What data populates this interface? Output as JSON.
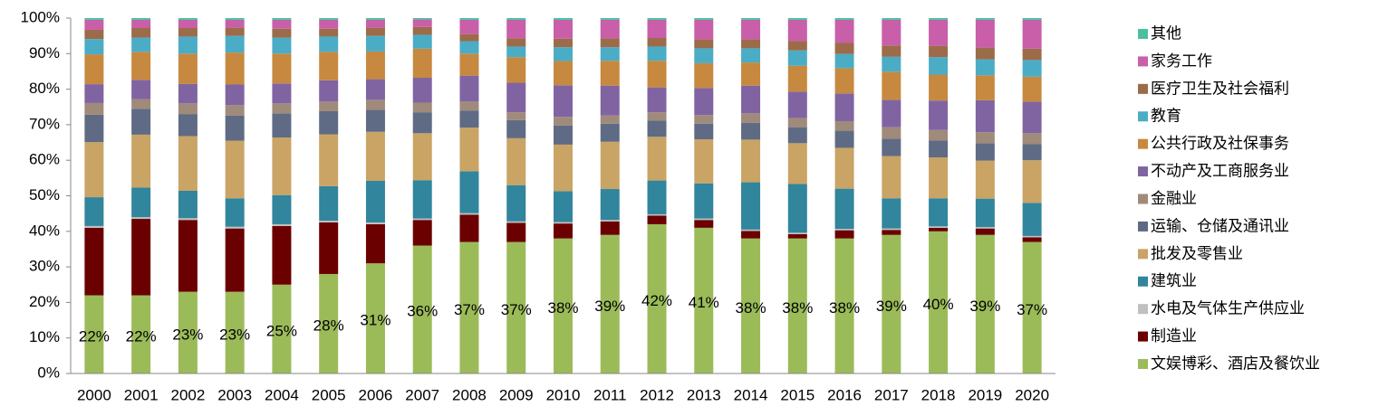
{
  "chart_data": {
    "type": "stacked_bar",
    "categories": [
      "2000",
      "2001",
      "2002",
      "2003",
      "2004",
      "2005",
      "2006",
      "2007",
      "2008",
      "2009",
      "2010",
      "2011",
      "2012",
      "2013",
      "2014",
      "2015",
      "2016",
      "2017",
      "2018",
      "2019",
      "2020"
    ],
    "ylim": [
      0,
      100
    ],
    "yticks": [
      {
        "value": 0,
        "label": "0%"
      },
      {
        "value": 10,
        "label": "10%"
      },
      {
        "value": 20,
        "label": "20%"
      },
      {
        "value": 30,
        "label": "30%"
      },
      {
        "value": 40,
        "label": "40%"
      },
      {
        "value": 50,
        "label": "50%"
      },
      {
        "value": 60,
        "label": "60%"
      },
      {
        "value": 70,
        "label": "70%"
      },
      {
        "value": 80,
        "label": "80%"
      },
      {
        "value": 90,
        "label": "90%"
      },
      {
        "value": 100,
        "label": "100%"
      }
    ],
    "grid": false,
    "legend": "right",
    "series": [
      {
        "name": "文娱博彩、酒店及餐饮业",
        "color": "#9bbb59",
        "values": [
          22,
          22,
          23,
          23,
          25,
          28,
          31,
          36,
          37,
          37,
          38,
          39,
          42,
          41,
          38,
          38,
          38,
          39,
          40,
          39,
          37
        ],
        "value_labels": [
          "22%",
          "22%",
          "23%",
          "23%",
          "25%",
          "28%",
          "31%",
          "36%",
          "37%",
          "37%",
          "38%",
          "39%",
          "42%",
          "41%",
          "38%",
          "38%",
          "38%",
          "39%",
          "40%",
          "39%",
          "37%"
        ]
      },
      {
        "name": "制造业",
        "color": "#6b0000",
        "values": [
          19.0,
          21.5,
          20.2,
          17.8,
          16.5,
          14.5,
          11.0,
          7.2,
          7.7,
          5.4,
          4.2,
          3.8,
          2.4,
          2.2,
          2.1,
          1.2,
          2.3,
          1.4,
          1.0,
          1.8,
          1.3
        ]
      },
      {
        "name": "水电及气体生产供应业",
        "color": "#c0c0c0",
        "values": [
          0.5,
          0.5,
          0.5,
          0.5,
          0.5,
          0.5,
          0.5,
          0.4,
          0.4,
          0.4,
          0.4,
          0.4,
          0.4,
          0.4,
          0.4,
          0.4,
          0.4,
          0.4,
          0.4,
          0.4,
          0.4
        ]
      },
      {
        "name": "建筑业",
        "color": "#31859c",
        "values": [
          8.1,
          8.3,
          7.7,
          8.0,
          8.2,
          9.7,
          11.7,
          10.8,
          11.8,
          10.2,
          8.7,
          8.7,
          9.5,
          9.9,
          13.3,
          13.7,
          11.3,
          8.5,
          7.9,
          8.0,
          9.3
        ]
      },
      {
        "name": "批发及零售业",
        "color": "#c9a465",
        "values": [
          15.5,
          14.9,
          15.4,
          16.2,
          16.2,
          14.6,
          13.8,
          13.2,
          12.3,
          13.2,
          13.1,
          13.3,
          12.3,
          12.4,
          12.0,
          11.5,
          11.5,
          11.9,
          11.5,
          10.7,
          12.0
        ]
      },
      {
        "name": "运输、仓储及通讯业",
        "color": "#5f6b84",
        "values": [
          7.7,
          7.3,
          6.2,
          7.1,
          6.8,
          6.5,
          6.2,
          5.9,
          4.8,
          5.1,
          5.4,
          5.1,
          4.6,
          4.4,
          4.7,
          4.5,
          4.8,
          4.9,
          4.8,
          4.9,
          4.5
        ]
      },
      {
        "name": "金融业",
        "color": "#a08a7a",
        "values": [
          3.3,
          2.7,
          3.0,
          2.9,
          2.8,
          2.7,
          2.8,
          2.7,
          2.5,
          2.2,
          2.4,
          2.3,
          2.3,
          2.4,
          2.7,
          2.6,
          2.7,
          3.2,
          2.9,
          3.1,
          3.1
        ]
      },
      {
        "name": "不动产及工商服务业",
        "color": "#8064a2",
        "values": [
          5.3,
          5.4,
          5.5,
          5.8,
          5.6,
          6.0,
          5.8,
          7.0,
          7.3,
          8.3,
          8.9,
          8.4,
          7.0,
          7.6,
          7.8,
          7.4,
          7.8,
          7.7,
          8.3,
          9.0,
          8.9
        ]
      },
      {
        "name": "公共行政及社保事务",
        "color": "#c6893f",
        "values": [
          8.4,
          7.9,
          8.5,
          9.0,
          8.4,
          8.0,
          7.8,
          8.2,
          6.2,
          7.2,
          6.8,
          7.0,
          7.5,
          7.0,
          6.5,
          7.3,
          7.1,
          7.9,
          7.3,
          7.0,
          7.0
        ]
      },
      {
        "name": "教育",
        "color": "#4bacc6",
        "values": [
          4.3,
          4.0,
          4.8,
          4.7,
          4.5,
          4.3,
          4.4,
          3.9,
          3.5,
          3.0,
          3.9,
          3.8,
          4.0,
          4.2,
          4.0,
          4.3,
          4.0,
          4.2,
          4.9,
          4.5,
          4.7
        ]
      },
      {
        "name": "医疗卫生及社会福利",
        "color": "#9c6b4a",
        "values": [
          2.6,
          2.7,
          2.4,
          2.3,
          2.5,
          2.2,
          2.3,
          2.2,
          2.0,
          2.3,
          2.4,
          2.5,
          2.4,
          2.5,
          2.5,
          2.6,
          3.1,
          3.2,
          3.2,
          3.3,
          3.2
        ]
      },
      {
        "name": "家务工作",
        "color": "#c85fa8",
        "values": [
          2.8,
          2.3,
          2.3,
          2.2,
          2.5,
          2.5,
          2.2,
          2.1,
          4.0,
          5.2,
          5.3,
          5.2,
          5.1,
          5.5,
          5.5,
          6.0,
          6.5,
          7.2,
          7.3,
          7.8,
          8.1
        ]
      },
      {
        "name": "其他",
        "color": "#4bbfa0",
        "values": [
          0.5,
          0.5,
          0.5,
          0.5,
          0.5,
          0.5,
          0.5,
          0.4,
          0.5,
          0.5,
          0.5,
          0.5,
          0.5,
          0.5,
          0.5,
          0.5,
          0.5,
          0.5,
          0.5,
          0.5,
          0.5
        ]
      }
    ]
  }
}
